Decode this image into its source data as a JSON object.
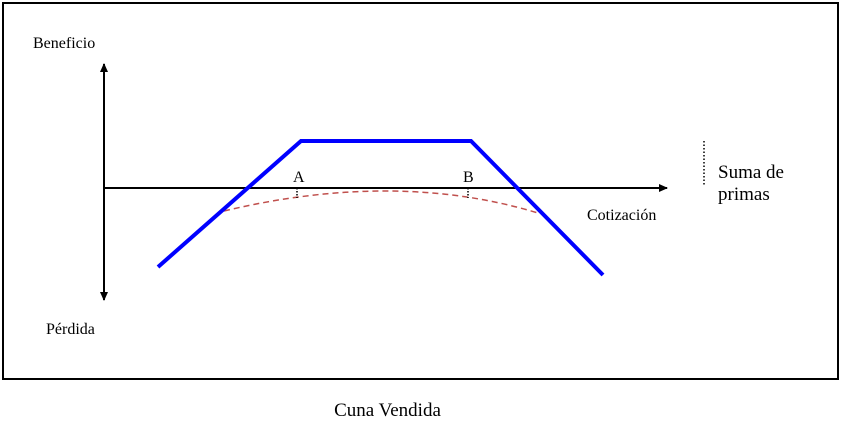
{
  "diagram": {
    "y_axis": {
      "top_label": "Beneficio",
      "bottom_label": "Pérdida"
    },
    "x_axis": {
      "label": "Cotización"
    },
    "points": [
      {
        "label": "A"
      },
      {
        "label": "B"
      }
    ],
    "legend": {
      "text": "Suma de primas"
    },
    "colors": {
      "payoff_line": "#0000ff",
      "premium_curve": "#c0504d",
      "axes": "#000000"
    },
    "caption": "Cuna Vendida"
  }
}
